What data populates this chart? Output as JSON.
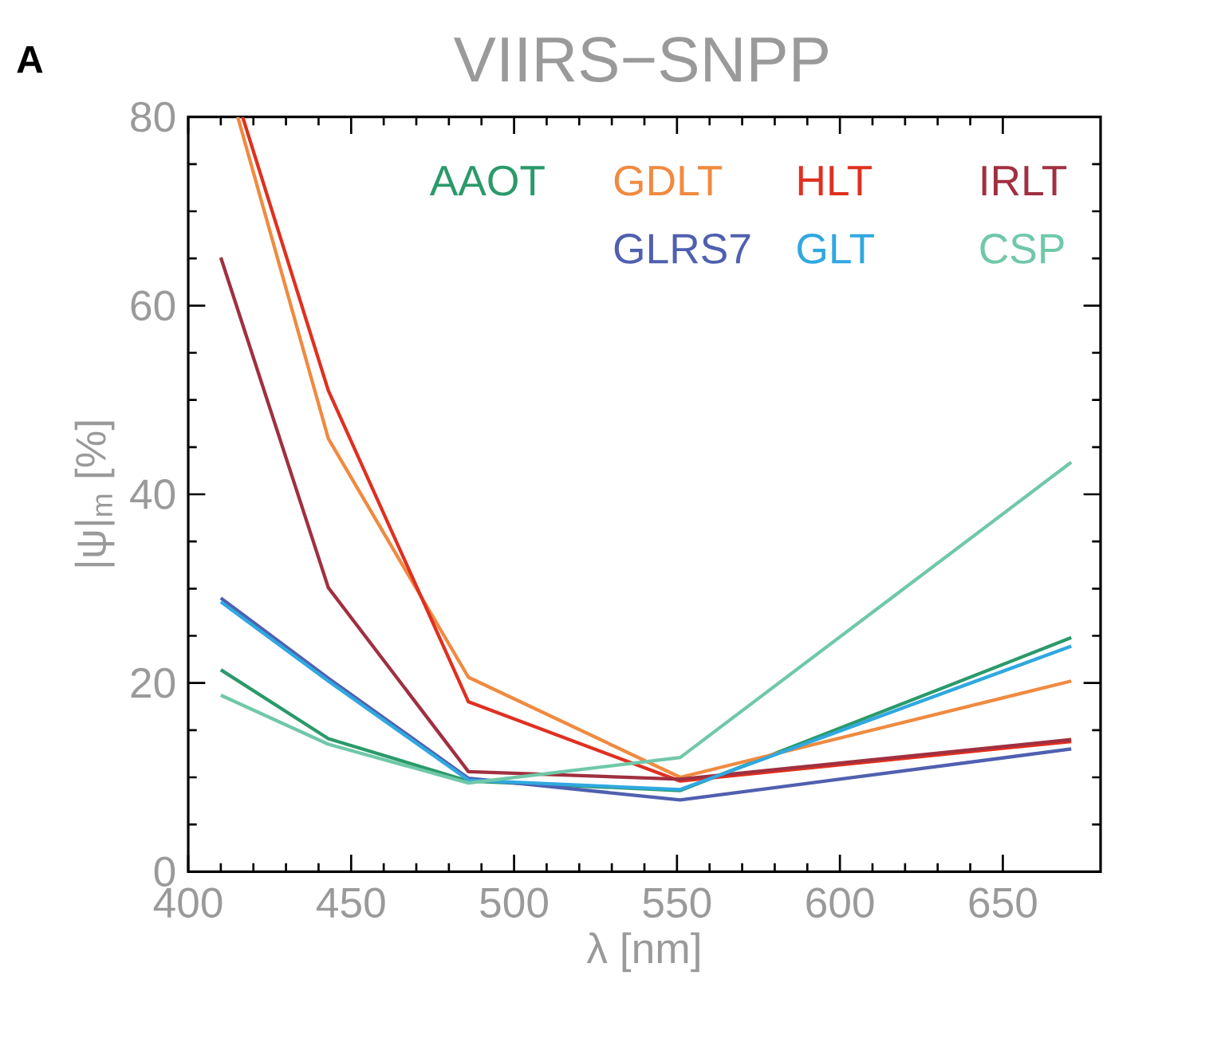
{
  "chart_data": {
    "type": "line",
    "title": "VIIRS−SNPP",
    "xlabel": "λ [nm]",
    "ylabel": "|ψ|$_{m}$ [%]",
    "annotations": [
      "A"
    ],
    "x": [
      410,
      443,
      486,
      551,
      671
    ],
    "series": [
      {
        "name": "AAOT",
        "color": "#2a9a6a",
        "values": [
          21.4,
          14.1,
          9.6,
          8.6,
          24.8
        ]
      },
      {
        "name": "GDLT",
        "color": "#f08a40",
        "x": [
          415.2,
          443,
          486,
          551,
          671
        ],
        "values": [
          80,
          45.9,
          20.6,
          10.0,
          20.2
        ]
      },
      {
        "name": "HLT",
        "color": "#e03020",
        "x": [
          416.7,
          443,
          486,
          551,
          671
        ],
        "values": [
          80,
          51.0,
          18.0,
          9.6,
          13.8
        ]
      },
      {
        "name": "IRLT",
        "color": "#a03040",
        "values": [
          65.1,
          30.1,
          10.6,
          9.8,
          14.0
        ]
      },
      {
        "name": "GLRS7",
        "color": "#5060b0",
        "values": [
          29.0,
          20.5,
          9.9,
          7.6,
          13.0
        ]
      },
      {
        "name": "GLT",
        "color": "#30a8e0",
        "values": [
          28.6,
          20.2,
          9.7,
          8.7,
          23.9
        ]
      },
      {
        "name": "CSP",
        "color": "#70c8a8",
        "values": [
          18.7,
          13.5,
          9.4,
          12.1,
          43.4
        ]
      }
    ],
    "xlim": [
      400,
      680
    ],
    "ylim": [
      0,
      80
    ],
    "xticks": [
      400,
      450,
      500,
      550,
      600,
      650
    ],
    "yticks": [
      0,
      20,
      40,
      60,
      80
    ],
    "legend": "top"
  }
}
